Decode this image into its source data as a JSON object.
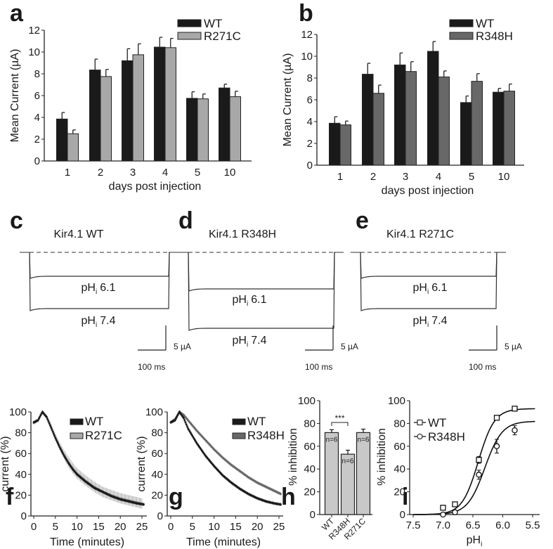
{
  "panel_letters": {
    "a": "a",
    "b": "b",
    "c": "c",
    "d": "d",
    "e": "e",
    "f": "f",
    "g": "g",
    "h": "h",
    "i": "i"
  },
  "colors": {
    "WT": "#1a1a1a",
    "R271C": "#a8a8a8",
    "R348H": "#686868",
    "bar_h": "#c8c8c8"
  },
  "chart_data": [
    {
      "panel": "a",
      "type": "bar",
      "xlabel": "days post injection",
      "ylabel": "Mean Current (µA)",
      "ylim": [
        0,
        12
      ],
      "yticks": [
        "0",
        "2",
        "4",
        "6",
        "8",
        "10",
        "12"
      ],
      "categories": [
        "1",
        "2",
        "3",
        "4",
        "5",
        "10"
      ],
      "legend": "top-right",
      "series": [
        {
          "name": "WT",
          "values": [
            3.85,
            8.35,
            9.2,
            10.45,
            5.75,
            6.7
          ],
          "error": [
            0.6,
            1.0,
            1.1,
            0.9,
            0.6,
            0.35
          ]
        },
        {
          "name": "R271C",
          "values": [
            2.5,
            7.75,
            9.75,
            10.4,
            5.7,
            5.9
          ],
          "error": [
            0.35,
            0.65,
            1.0,
            0.85,
            0.45,
            0.5
          ]
        }
      ]
    },
    {
      "panel": "b",
      "type": "bar",
      "xlabel": "days post injection",
      "ylabel": "Mean Current (µA)",
      "ylim": [
        0,
        12
      ],
      "yticks": [
        "0",
        "2",
        "4",
        "6",
        "8",
        "10",
        "12"
      ],
      "categories": [
        "1",
        "2",
        "3",
        "4",
        "5",
        "10"
      ],
      "legend": "top-right",
      "series": [
        {
          "name": "WT",
          "values": [
            3.85,
            8.35,
            9.2,
            10.45,
            5.75,
            6.7
          ],
          "error": [
            0.6,
            1.0,
            1.1,
            0.9,
            0.6,
            0.35
          ]
        },
        {
          "name": "R348H",
          "values": [
            3.7,
            6.6,
            8.6,
            8.1,
            7.7,
            6.8
          ],
          "error": [
            0.35,
            0.75,
            0.9,
            0.55,
            0.7,
            0.65
          ]
        }
      ]
    },
    {
      "panel": "c",
      "type": "line",
      "title": "Kir4.1 WT",
      "trace_label_main": "pH",
      "trace_label_sub": "i",
      "trace_levels": [
        "6.1",
        "7.4"
      ],
      "scale_bar": {
        "current": "5 µA",
        "time": "100 ms"
      }
    },
    {
      "panel": "d",
      "type": "line",
      "title": "Kir4.1 R348H",
      "trace_label_main": "pH",
      "trace_label_sub": "i",
      "trace_levels": [
        "6.1",
        "7.4"
      ],
      "scale_bar": {
        "current": "5 µA",
        "time": "100 ms"
      }
    },
    {
      "panel": "e",
      "type": "line",
      "title": "Kir4.1 R271C",
      "trace_label_main": "pH",
      "trace_label_sub": "i",
      "trace_levels": [
        "6.1",
        "7.4"
      ],
      "scale_bar": {
        "current": "5 µA",
        "time": "100 ms"
      }
    },
    {
      "panel": "f",
      "type": "scatter",
      "xlabel": "Time (minutes)",
      "ylabel": "current (%)",
      "xlim": [
        0,
        25
      ],
      "ylim": [
        0,
        100
      ],
      "xticks": [
        "0",
        "5",
        "10",
        "15",
        "20",
        "25"
      ],
      "yticks": [
        "0",
        "20",
        "40",
        "60",
        "80",
        "100"
      ],
      "legend": "top-right",
      "series": [
        {
          "name": "WT",
          "x": [
            0,
            1,
            2,
            3,
            4,
            5,
            6,
            7,
            8,
            9,
            10,
            12,
            14,
            16,
            18,
            20,
            22,
            24,
            25.5
          ],
          "y": [
            90,
            92,
            100,
            95,
            85,
            75,
            66,
            58,
            51,
            45,
            40,
            33,
            27,
            23,
            19,
            16,
            14,
            12,
            11
          ],
          "error": 1.5
        },
        {
          "name": "R271C",
          "x": [
            0,
            1,
            2,
            3,
            4,
            5,
            6,
            7,
            8,
            9,
            10,
            12,
            14,
            16,
            18,
            20,
            22,
            24,
            25
          ],
          "y": [
            89,
            92,
            100,
            95,
            86,
            76,
            67,
            59,
            52,
            46,
            41,
            34,
            28,
            23,
            20,
            17,
            15,
            13,
            12
          ],
          "error": 5
        }
      ]
    },
    {
      "panel": "g",
      "type": "scatter",
      "xlabel": "Time (minutes)",
      "ylabel": "current (%)",
      "xlim": [
        0,
        25
      ],
      "ylim": [
        0,
        100
      ],
      "xticks": [
        "0",
        "5",
        "10",
        "15",
        "20",
        "25"
      ],
      "yticks": [
        "0",
        "20",
        "40",
        "60",
        "80",
        "100"
      ],
      "legend": "top-right",
      "series": [
        {
          "name": "WT",
          "x": [
            0,
            1,
            2,
            3,
            4,
            6,
            8,
            10,
            12,
            14,
            16,
            18,
            20,
            22,
            24,
            25.5
          ],
          "y": [
            90,
            92,
            100,
            94,
            84,
            70,
            58,
            48,
            39,
            32,
            26,
            21,
            17,
            14,
            12,
            11
          ],
          "error": 1.5
        },
        {
          "name": "R348H",
          "x": [
            0,
            1,
            2,
            3,
            4,
            6,
            8,
            10,
            12,
            14,
            16,
            18,
            20,
            22,
            24,
            25.5
          ],
          "y": [
            90,
            93,
            100,
            97,
            92,
            82,
            73,
            64,
            56,
            49,
            43,
            37,
            32,
            28,
            24,
            21
          ],
          "error": 1.5
        }
      ]
    },
    {
      "panel": "h",
      "type": "bar",
      "ylabel": "% inhibition",
      "ylim": [
        0,
        100
      ],
      "yticks": [
        "0",
        "20",
        "40",
        "60",
        "80",
        "100"
      ],
      "categories": [
        "WT",
        "R348H",
        "R271C"
      ],
      "values": [
        72,
        53,
        72
      ],
      "error": [
        2.5,
        3.5,
        3
      ],
      "n_labels": [
        "n=6",
        "n=6",
        "n=6"
      ],
      "significance": {
        "between": [
          "WT",
          "R348H"
        ],
        "label": "***"
      }
    },
    {
      "panel": "i",
      "type": "scatter",
      "xlabel_main": "pH",
      "xlabel_sub": "i",
      "ylabel": "% inhibition",
      "xlim": [
        7.5,
        5.5
      ],
      "ylim": [
        0,
        100
      ],
      "xticks": [
        "7.5",
        "7.0",
        "6.5",
        "6.0",
        "5.5"
      ],
      "yticks": [
        "0",
        "20",
        "40",
        "60",
        "80",
        "100"
      ],
      "legend": "top-left",
      "series": [
        {
          "name": "WT",
          "marker": "square",
          "x": [
            7.0,
            6.8,
            6.4,
            6.1,
            5.8
          ],
          "y": [
            6,
            9,
            48,
            85,
            93
          ],
          "error": [
            1,
            1,
            3,
            2,
            1
          ]
        },
        {
          "name": "R348H",
          "marker": "circle",
          "x": [
            7.0,
            6.8,
            6.4,
            6.1,
            5.8
          ],
          "y": [
            0,
            2,
            35,
            60,
            74
          ],
          "error": [
            1,
            1,
            4,
            6,
            4
          ]
        }
      ]
    }
  ]
}
